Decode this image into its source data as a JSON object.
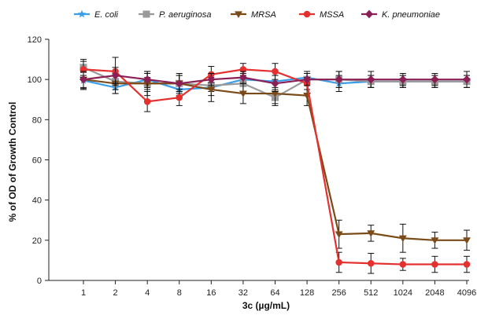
{
  "chart_data": {
    "type": "line",
    "title": "",
    "xlabel": "3c (µg/mL)",
    "ylabel": "% of OD of Growth Control",
    "x_scale": "categorical",
    "categories": [
      "1",
      "2",
      "4",
      "8",
      "16",
      "32",
      "64",
      "128",
      "256",
      "512",
      "1024",
      "2048",
      "4096"
    ],
    "ylim": [
      0,
      120
    ],
    "yticks": [
      "0",
      "20",
      "40",
      "60",
      "80",
      "100",
      "120"
    ],
    "grid": false,
    "legend_position": "top",
    "series": [
      {
        "name": "E. coli",
        "color": "#3a9ee8",
        "marker": "star",
        "values": [
          99.5,
          96,
          100,
          95,
          96,
          100,
          99,
          101,
          98,
          99,
          99,
          99,
          99
        ],
        "errors": [
          4,
          3,
          3,
          3,
          4,
          3,
          3,
          3,
          4,
          3,
          3,
          3,
          3
        ]
      },
      {
        "name": "P. aeruginosa",
        "color": "#9a9a9a",
        "marker": "square",
        "values": [
          106,
          99,
          98,
          98,
          97,
          98,
          91,
          100,
          100,
          99,
          99,
          99,
          99
        ],
        "errors": [
          4,
          4,
          3,
          4,
          3,
          4,
          4,
          3,
          4,
          3,
          3,
          3,
          3
        ]
      },
      {
        "name": "MRSA",
        "color": "#7a4a18",
        "marker": "triangle-down",
        "values": [
          100,
          98,
          98,
          98,
          95,
          93,
          93,
          92,
          23,
          23.5,
          21,
          20,
          20
        ],
        "errors": [
          5,
          5,
          6,
          5,
          6,
          5,
          5,
          5,
          7,
          4,
          7,
          4,
          5
        ]
      },
      {
        "name": "MSSA",
        "color": "#e53030",
        "marker": "circle",
        "values": [
          105,
          104,
          89,
          91,
          102.5,
          105,
          104,
          98,
          9,
          8.5,
          8,
          8,
          8
        ],
        "errors": [
          4,
          7,
          5,
          4,
          4,
          3,
          4,
          3,
          5,
          5,
          3,
          4,
          4
        ]
      },
      {
        "name": "K. pneumoniae",
        "color": "#8b1f55",
        "marker": "diamond",
        "values": [
          100,
          102,
          100,
          98,
          100,
          101,
          98,
          100,
          100,
          100,
          100,
          100,
          100
        ],
        "errors": [
          4,
          4,
          4,
          4,
          3,
          3,
          4,
          3,
          4,
          4,
          3,
          3,
          4
        ]
      }
    ]
  }
}
